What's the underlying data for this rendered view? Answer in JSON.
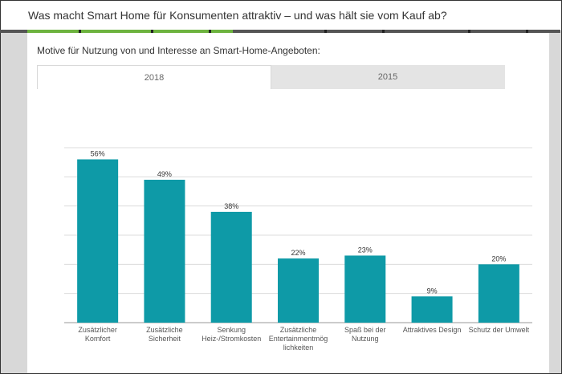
{
  "header": {
    "title": "Was macht Smart Home für Konsumenten attraktiv – und was hält sie vom Kauf ab?"
  },
  "subtitle": "Motive für Nutzung von und Interesse an Smart-Home-Angeboten:",
  "tabs": [
    {
      "label": "2018",
      "active": true
    },
    {
      "label": "2015",
      "active": false
    }
  ],
  "colors": {
    "bar": "#0e9aa7",
    "accent": "#6db33f"
  },
  "chart_data": {
    "type": "bar",
    "categories": [
      [
        "Zusätzlicher",
        "Komfort"
      ],
      [
        "Zusätzliche",
        "Sicherheit"
      ],
      [
        "Senkung",
        "Heiz-/Stromkosten"
      ],
      [
        "Zusätzliche",
        "Entertainmentmög",
        "lichkeiten"
      ],
      [
        "Spaß bei der",
        "Nutzung"
      ],
      [
        "Attraktives Design"
      ],
      [
        "Schutz der Umwelt"
      ]
    ],
    "values": [
      56,
      49,
      38,
      22,
      23,
      9,
      20
    ],
    "data_labels": [
      "56%",
      "49%",
      "38%",
      "22%",
      "23%",
      "9%",
      "20%"
    ],
    "ylim": [
      0,
      60
    ],
    "grid": true
  }
}
